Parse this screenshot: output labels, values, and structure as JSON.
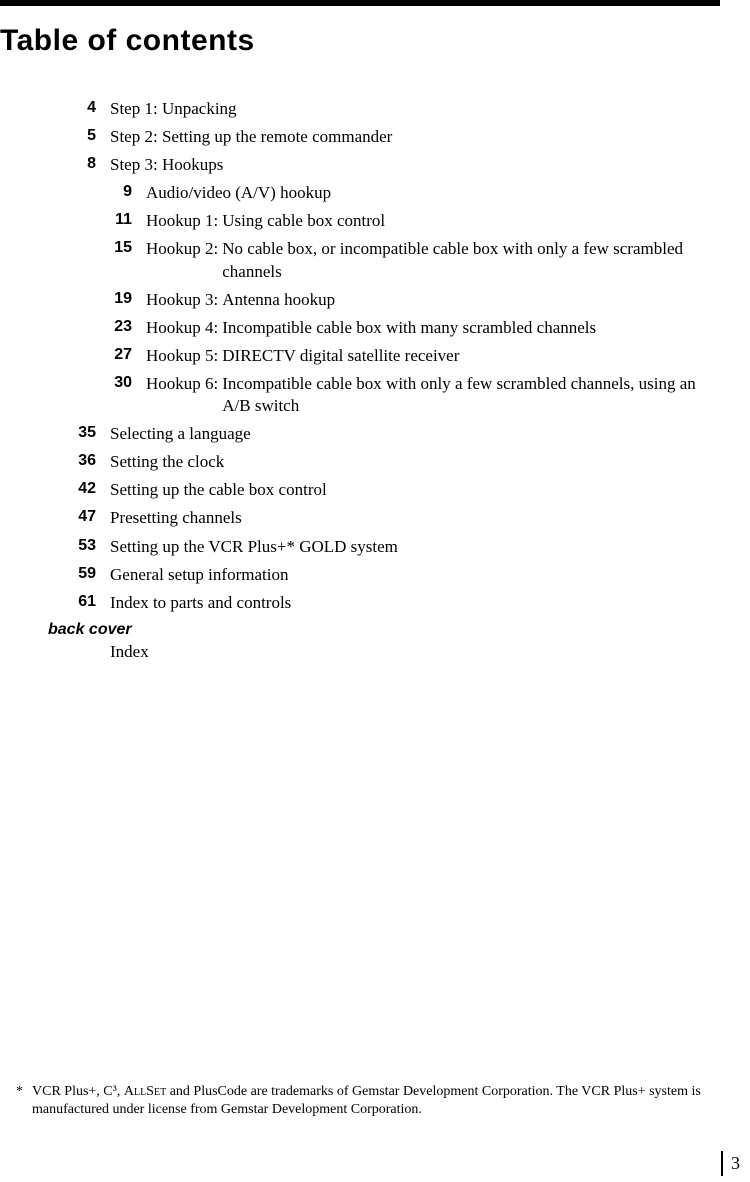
{
  "heading": "Table of contents",
  "toc": {
    "main": [
      {
        "page": "4",
        "title": "Step 1: Unpacking"
      },
      {
        "page": "5",
        "title": "Step 2: Setting up the remote commander"
      },
      {
        "page": "8",
        "title": "Step 3: Hookups"
      }
    ],
    "hookups": [
      {
        "page": "9",
        "label": "",
        "text": "Audio/video (A/V) hookup"
      },
      {
        "page": "11",
        "label": "Hookup 1:",
        "text": "Using cable box control"
      },
      {
        "page": "15",
        "label": "Hookup 2:",
        "text": "No cable box, or incompatible cable box with only a few scrambled channels"
      },
      {
        "page": "19",
        "label": "Hookup 3:",
        "text": "Antenna hookup"
      },
      {
        "page": "23",
        "label": "Hookup 4:",
        "text": "Incompatible cable box with many scrambled channels"
      },
      {
        "page": "27",
        "label": "Hookup 5:",
        "text": "DIRECTV digital satellite receiver"
      },
      {
        "page": "30",
        "label": "Hookup 6:",
        "text": "Incompatible cable box with only a few scrambled channels, using an A/B switch"
      }
    ],
    "post": [
      {
        "page": "35",
        "title": "Selecting a language"
      },
      {
        "page": "36",
        "title": "Setting the clock"
      },
      {
        "page": "42",
        "title": "Setting up the cable box control"
      },
      {
        "page": "47",
        "title": "Presetting channels"
      },
      {
        "page": "53",
        "title": "Setting up the VCR Plus+* GOLD system"
      },
      {
        "page": "59",
        "title": "General setup information"
      },
      {
        "page": "61",
        "title": "Index to parts and controls"
      }
    ],
    "back_cover_label": "back cover",
    "back_cover_title": "Index"
  },
  "footnote": {
    "star": "*",
    "text_before": "VCR Plus+, C³, ",
    "text_sc": "AllSet",
    "text_after": " and PlusCode are trademarks of Gemstar Development Corporation.  The VCR Plus+ system is manufactured under license from Gemstar Development Corporation."
  },
  "page_number": "3"
}
